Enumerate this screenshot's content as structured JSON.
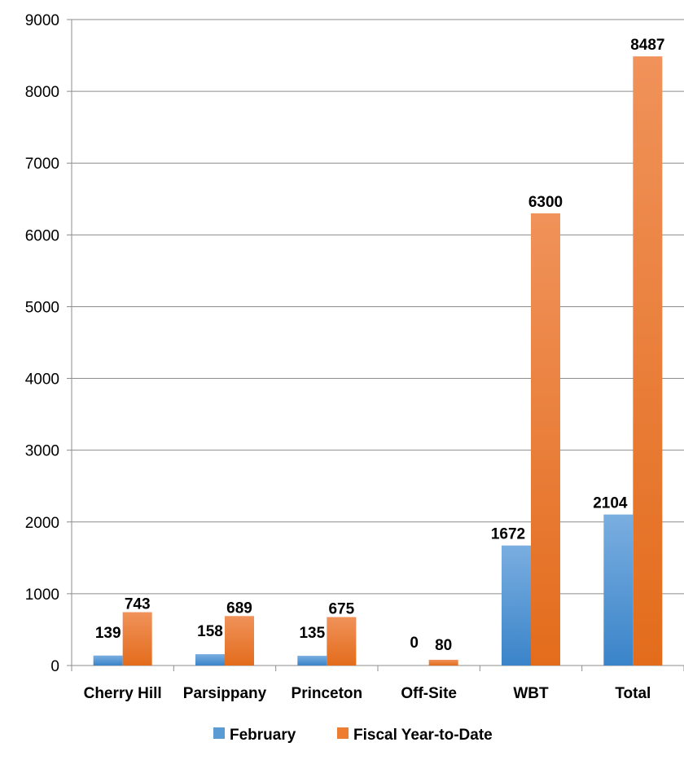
{
  "chart_data": {
    "type": "bar",
    "categories": [
      "Cherry Hill",
      "Parsippany",
      "Princeton",
      "Off-Site",
      "WBT",
      "Total"
    ],
    "series": [
      {
        "name": "February",
        "values": [
          139,
          158,
          135,
          0,
          1672,
          2104
        ]
      },
      {
        "name": "Fiscal Year-to-Date",
        "values": [
          743,
          689,
          675,
          80,
          6300,
          8487
        ]
      }
    ],
    "ylim": [
      0,
      9000
    ],
    "yticks": [
      0,
      1000,
      2000,
      3000,
      4000,
      5000,
      6000,
      7000,
      8000,
      9000
    ],
    "grid": true,
    "legend_position": "bottom",
    "colors": {
      "February": "#5b9bd5",
      "Fiscal Year-to-Date": "#ed7d31"
    }
  }
}
